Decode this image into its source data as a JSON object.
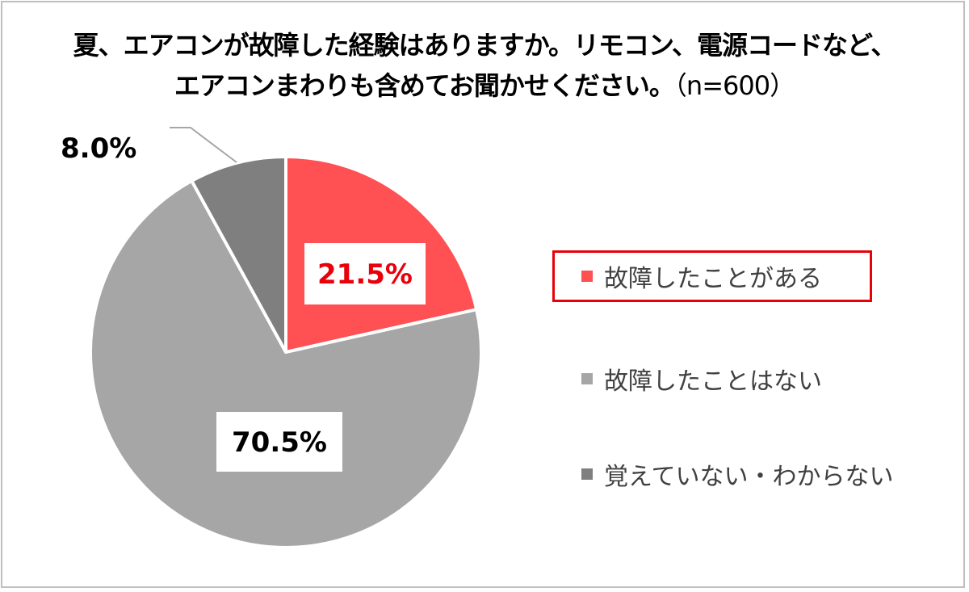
{
  "colors": {
    "fault_yes": "#ff5053",
    "fault_no": "#a6a6a6",
    "unknown": "#7f7f7f",
    "highlight": "#e8000b",
    "label_red": "#e8000b",
    "label_dark": "#000000"
  },
  "chart_data": {
    "type": "pie",
    "title_line1": "夏、エアコンが故障した経験はありますか。リモコン、電源コードなど、",
    "title_line2": "エアコンまわりも含めてお聞かせください。",
    "sample_size_label": "（n=600）",
    "slices": [
      {
        "name": "故障したことがある",
        "value": 21.5,
        "label": "21.5%"
      },
      {
        "name": "故障したことはない",
        "value": 70.5,
        "label": "70.5%"
      },
      {
        "name": "覚えていない・わからない",
        "value": 8.0,
        "label": "8.0%"
      }
    ],
    "legend_position": "right",
    "highlighted_legend_entry": "故障したことがある"
  }
}
